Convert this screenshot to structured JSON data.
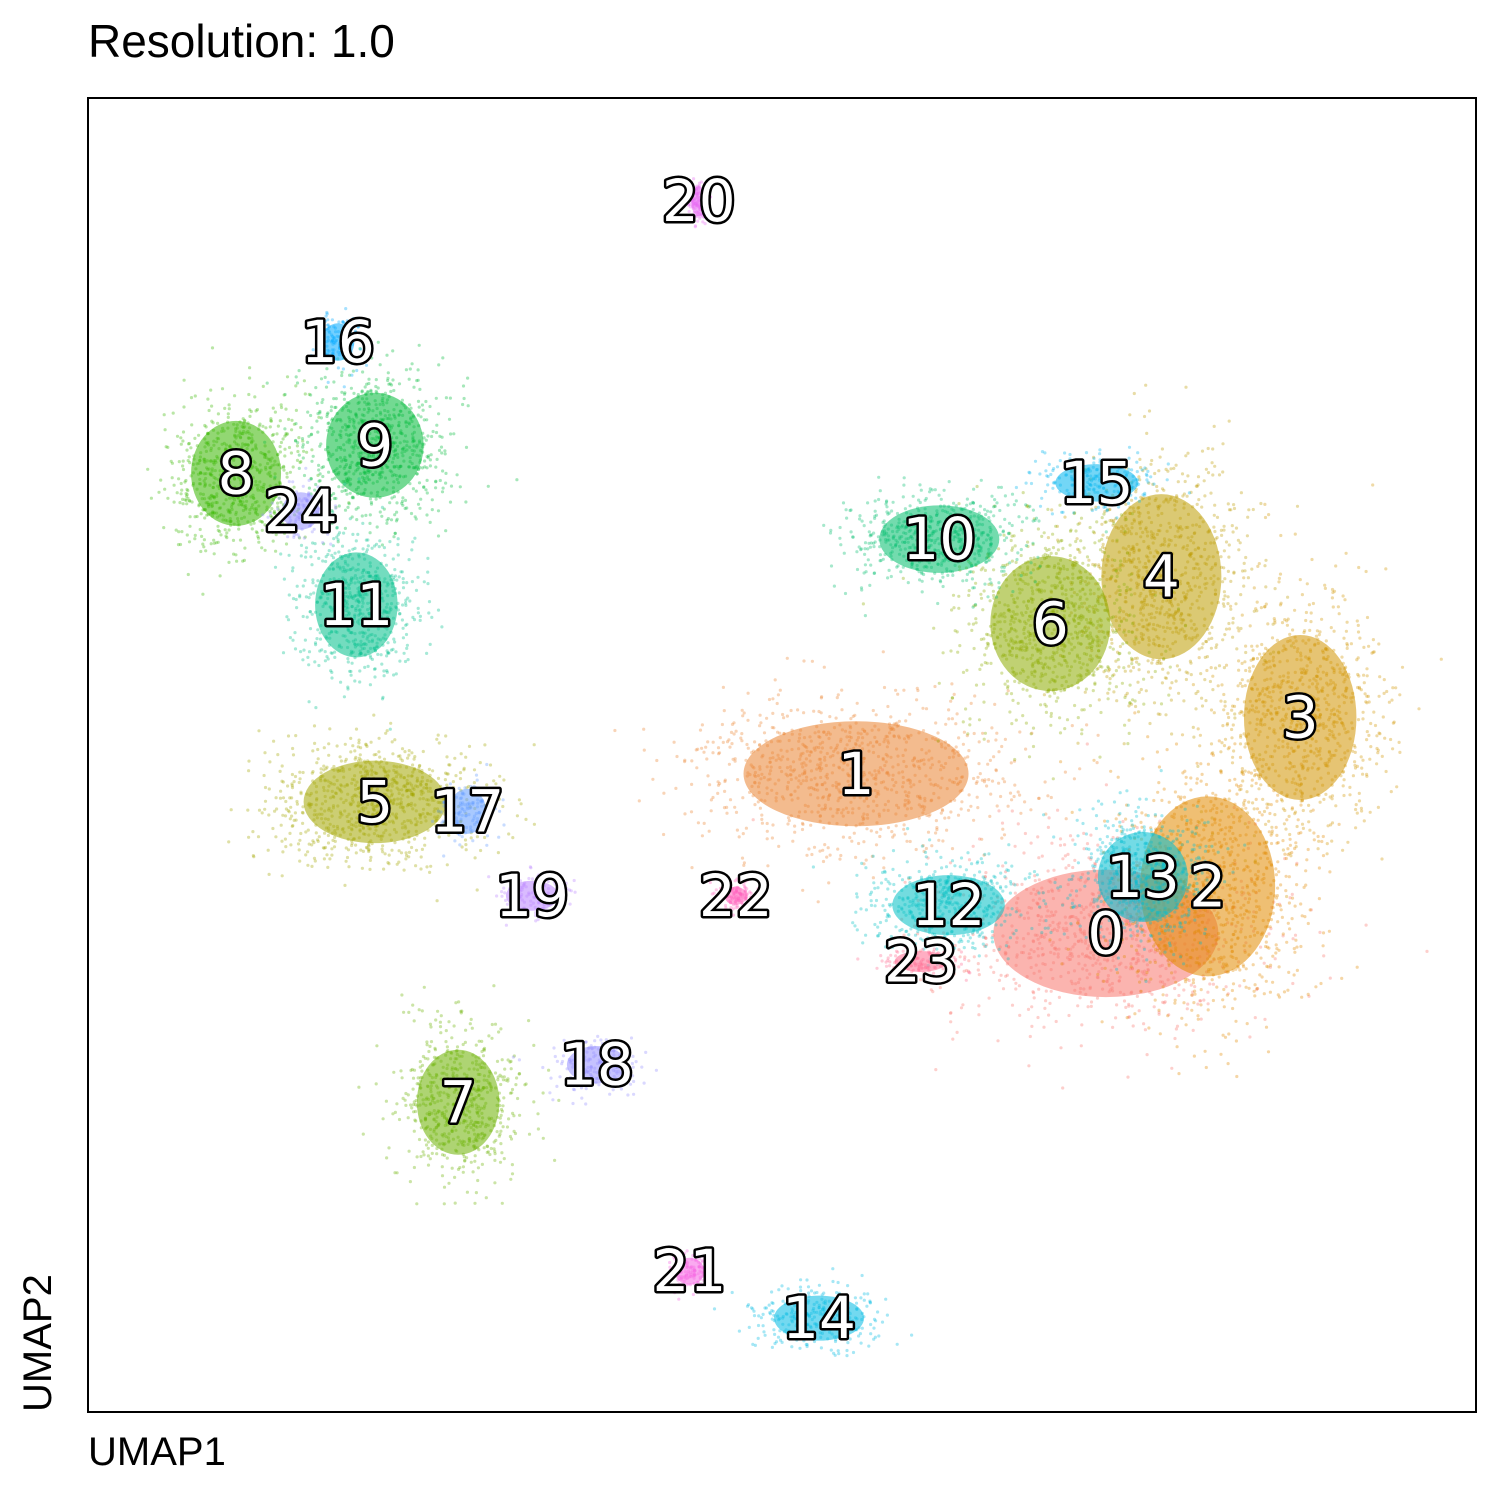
{
  "chart_data": {
    "type": "scatter",
    "title": "Resolution: 1.0",
    "xlabel": "UMAP1",
    "ylabel": "UMAP2",
    "grid": false,
    "legend": "on data",
    "clusters": [
      {
        "label": "0",
        "x": 10.5,
        "y": 3.6,
        "color": "#F8766D"
      },
      {
        "label": "1",
        "x": 7.8,
        "y": 5.3,
        "color": "#EA8331"
      },
      {
        "label": "2",
        "x": 11.6,
        "y": 4.1,
        "color": "#E18A00"
      },
      {
        "label": "3",
        "x": 12.6,
        "y": 5.9,
        "color": "#D19400"
      },
      {
        "label": "4",
        "x": 11.1,
        "y": 7.4,
        "color": "#BE9C00"
      },
      {
        "label": "5",
        "x": 2.6,
        "y": 5.0,
        "color": "#A3A500"
      },
      {
        "label": "6",
        "x": 9.9,
        "y": 6.9,
        "color": "#8CAB00"
      },
      {
        "label": "7",
        "x": 3.5,
        "y": 1.8,
        "color": "#6BB100"
      },
      {
        "label": "8",
        "x": 1.1,
        "y": 8.5,
        "color": "#39B600"
      },
      {
        "label": "9",
        "x": 2.6,
        "y": 8.8,
        "color": "#00BA38"
      },
      {
        "label": "10",
        "x": 8.7,
        "y": 7.8,
        "color": "#00BE6C"
      },
      {
        "label": "11",
        "x": 2.4,
        "y": 7.1,
        "color": "#00C08B"
      },
      {
        "label": "12",
        "x": 8.8,
        "y": 3.9,
        "color": "#00BFC4"
      },
      {
        "label": "13",
        "x": 10.9,
        "y": 4.2,
        "color": "#00BDD0"
      },
      {
        "label": "14",
        "x": 7.4,
        "y": -0.5,
        "color": "#00B9E3"
      },
      {
        "label": "15",
        "x": 10.4,
        "y": 8.4,
        "color": "#00B4EF"
      },
      {
        "label": "16",
        "x": 2.2,
        "y": 9.9,
        "color": "#00A9FF"
      },
      {
        "label": "17",
        "x": 3.6,
        "y": 4.9,
        "color": "#619CFF"
      },
      {
        "label": "18",
        "x": 5.0,
        "y": 2.2,
        "color": "#9590FF"
      },
      {
        "label": "19",
        "x": 4.3,
        "y": 4.0,
        "color": "#B983FF"
      },
      {
        "label": "20",
        "x": 6.1,
        "y": 11.4,
        "color": "#E76BF3"
      },
      {
        "label": "21",
        "x": 6.0,
        "y": 0.0,
        "color": "#F564E3"
      },
      {
        "label": "22",
        "x": 6.5,
        "y": 4.0,
        "color": "#FF62BC"
      },
      {
        "label": "23",
        "x": 8.5,
        "y": 3.3,
        "color": "#FF6C91"
      },
      {
        "label": "24",
        "x": 1.8,
        "y": 8.1,
        "color": "#9590FF"
      }
    ],
    "xlim": [
      -0.5,
      14.5
    ],
    "ylim": [
      -1.5,
      12.5
    ]
  }
}
